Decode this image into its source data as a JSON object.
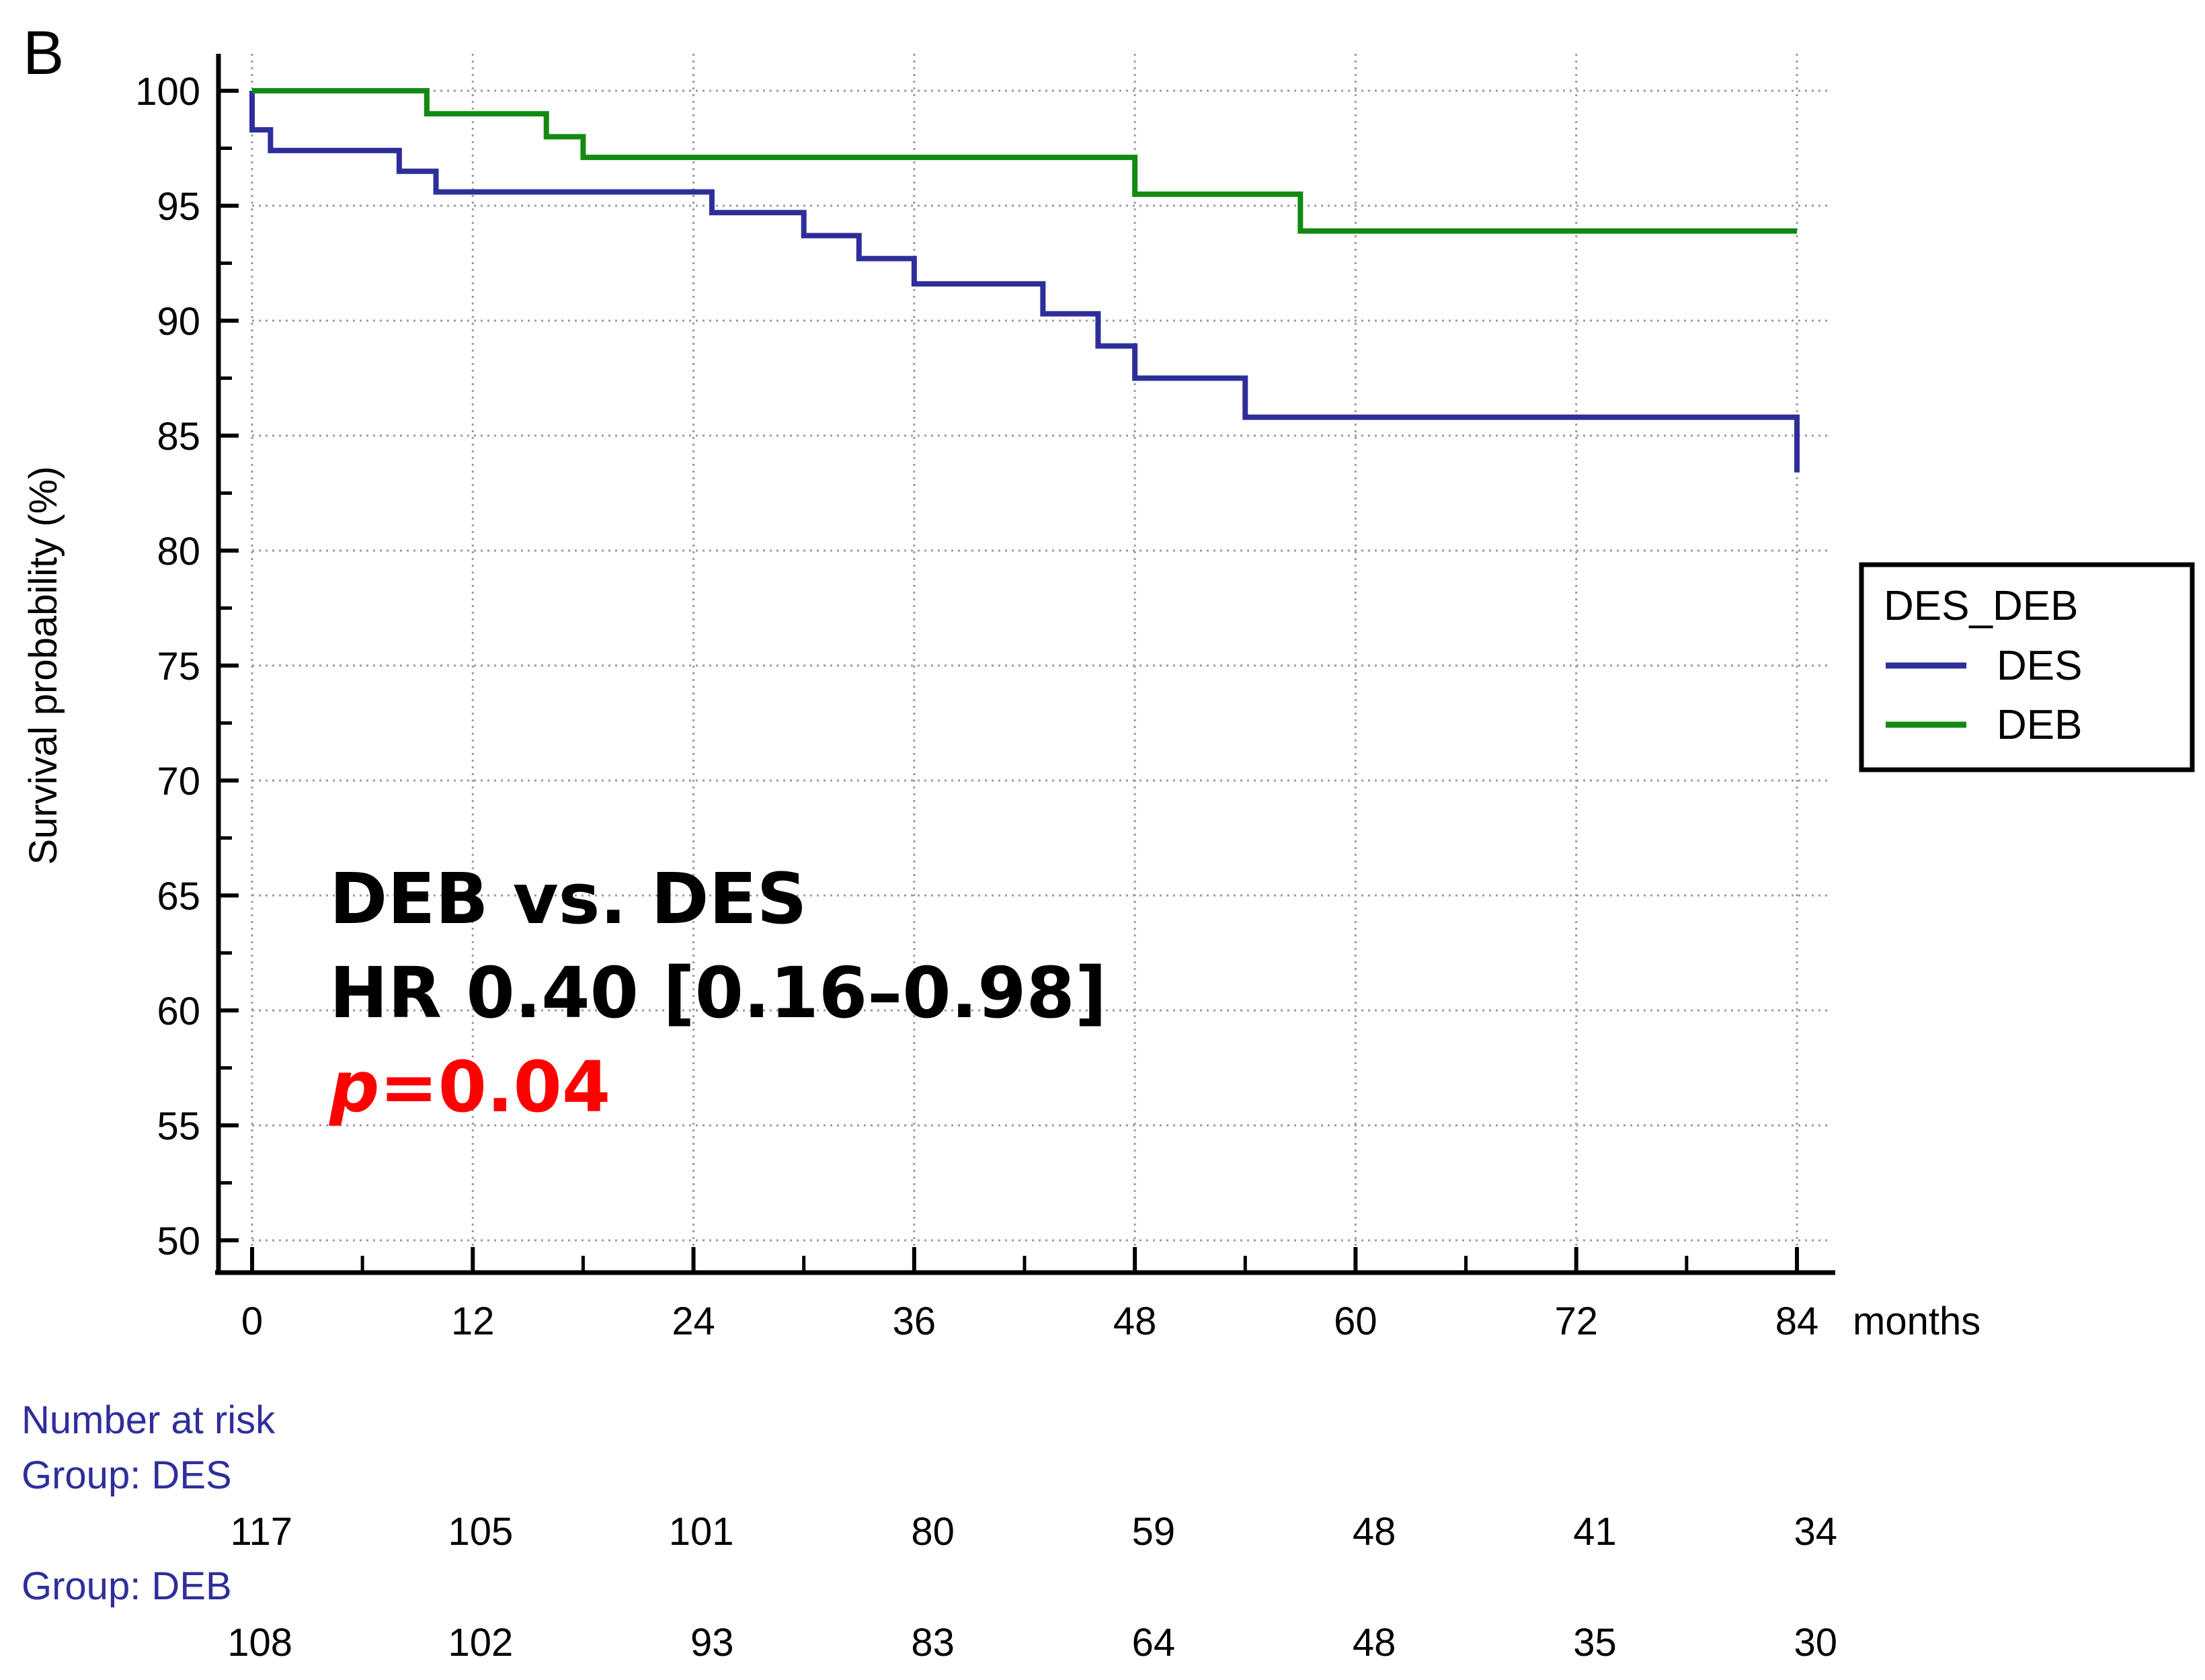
{
  "panel_label": "B",
  "chart_data": {
    "type": "line",
    "subtype": "kaplan-meier",
    "title": "",
    "xlabel": "months",
    "ylabel": "Survival probability (%)",
    "xlim": [
      0,
      84
    ],
    "ylim": [
      50,
      100
    ],
    "xticks": [
      0,
      12,
      24,
      36,
      48,
      60,
      72,
      84
    ],
    "yticks": [
      50,
      55,
      60,
      65,
      70,
      75,
      80,
      85,
      90,
      95,
      100
    ],
    "grid": true,
    "colors": {
      "DES": "#2e2e9a",
      "DEB": "#128a12",
      "pvalue": "#ff0000"
    },
    "legend": {
      "title": "DES_DEB",
      "position": "right",
      "entries": [
        "DES",
        "DEB"
      ]
    },
    "series": [
      {
        "name": "DES",
        "x": [
          0,
          0,
          1,
          8,
          10,
          25,
          30,
          33,
          36,
          43,
          46,
          48,
          54,
          84,
          84
        ],
        "y": [
          100,
          98.3,
          97.4,
          96.5,
          95.6,
          94.7,
          93.7,
          92.7,
          91.6,
          90.3,
          88.9,
          87.5,
          85.8,
          85.8,
          83.4
        ]
      },
      {
        "name": "DEB",
        "x": [
          0,
          9.5,
          16,
          18,
          48,
          57,
          84
        ],
        "y": [
          100,
          99.0,
          98.0,
          97.1,
          95.5,
          93.9,
          93.9
        ]
      }
    ],
    "annotations": {
      "comparison": "DEB vs. DES",
      "hr": "HR 0.40 [0.16–0.98]",
      "p_symbol": "p",
      "p_value": "=0.04"
    },
    "risk_table": {
      "title": "Number at risk",
      "groups": [
        {
          "label": "Group: DES",
          "values": [
            "117",
            "105",
            "101",
            "80",
            "59",
            "48",
            "41",
            "34"
          ]
        },
        {
          "label": "Group: DEB",
          "values": [
            "108",
            "102",
            "93",
            "83",
            "64",
            "48",
            "35",
            "30"
          ]
        }
      ]
    }
  }
}
